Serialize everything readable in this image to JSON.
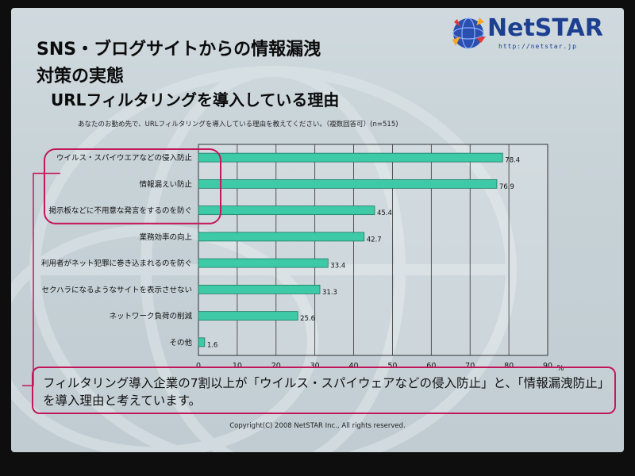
{
  "slide": {
    "title_line1": "SNS・ブログサイトからの情報漏洩",
    "title_line2": "対策の実態",
    "title_line3": "URLフィルタリングを導入している理由",
    "logo_text": "NetSTAR",
    "logo_url": "http://netstar.jp",
    "question": "あなたのお勤め先で、URLフィルタリングを導入している理由を教えてください。（複数回答可）(n=515)",
    "note": "フィルタリング導入企業の7割以上が「ウイルス・スパイウェアなどの侵入防止」と、「情報漏洩防止」を導入理由と考えています。",
    "copyright": "Copyright(C) 2008  NetSTAR Inc., All rights reserved.",
    "accent_color": "#c2185b",
    "bar_color": "#3ec9a7"
  },
  "chart_data": {
    "type": "bar",
    "orientation": "horizontal",
    "categories": [
      "ウイルス・スパイウエアなどの侵入防止",
      "情報漏えい防止",
      "掲示板などに不用意な発言をするのを防ぐ",
      "業務効率の向上",
      "利用者がネット犯罪に巻き込まれるのを防ぐ",
      "セクハラになるようなサイトを表示させない",
      "ネットワーク負荷の削減",
      "その他"
    ],
    "values": [
      78.4,
      76.9,
      45.4,
      42.7,
      33.4,
      31.3,
      25.6,
      1.6
    ],
    "value_labels": [
      "78.4",
      "76.9",
      "45.4",
      "42.7",
      "33.4",
      "31.3",
      "25.6",
      "1.6"
    ],
    "x_ticks": [
      "0",
      "10",
      "20",
      "30",
      "40",
      "50",
      "60",
      "70",
      "80",
      "90"
    ],
    "x_unit": "%",
    "xlim": [
      0,
      90
    ],
    "grid": true
  }
}
